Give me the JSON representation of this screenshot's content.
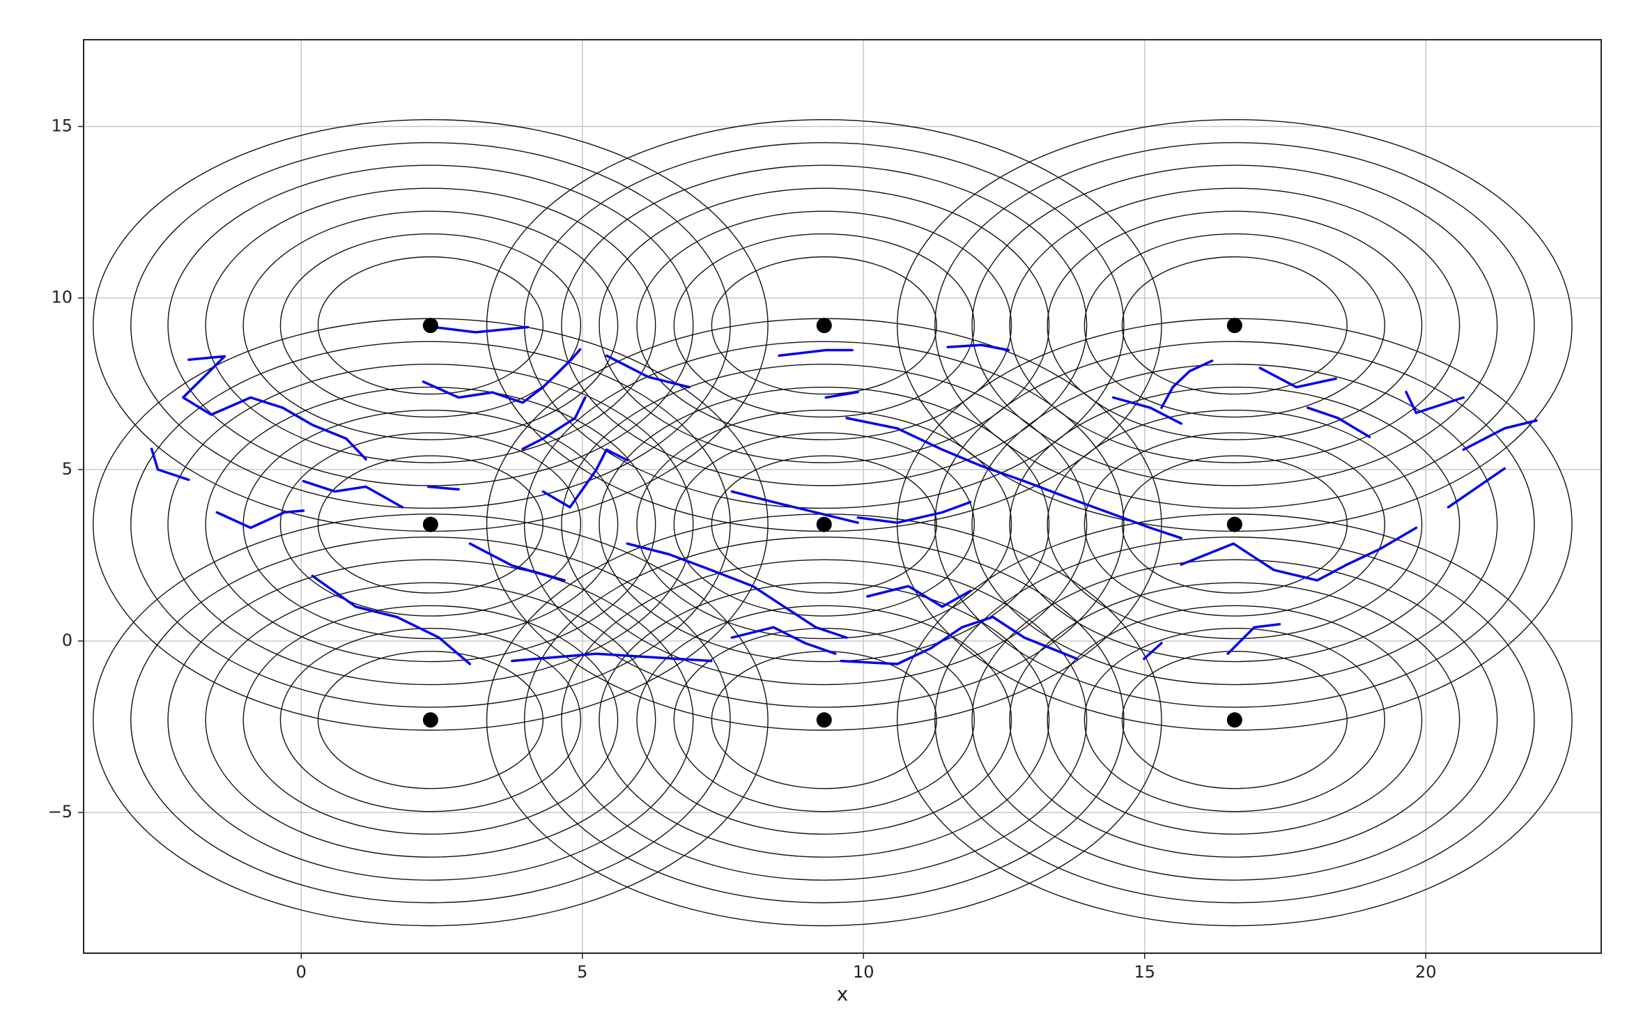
{
  "chart_data": {
    "type": "scatter",
    "x_label": "x",
    "xlim": [
      -3.87,
      23.12
    ],
    "ylim": [
      -9.1,
      17.53
    ],
    "xticks": [
      0,
      5,
      10,
      15,
      20
    ],
    "yticks": [
      {
        "value": -5,
        "label": "−5"
      },
      0,
      5,
      10,
      15
    ],
    "grid": true,
    "radii": [
      2,
      2.67,
      3.33,
      4,
      4.67,
      5.33,
      6
    ],
    "ring_color": "#111111",
    "series": [
      {
        "color": "#000000",
        "marker": "dot",
        "x": [
          2.3,
          9.3,
          16.6,
          2.3,
          9.3,
          16.6,
          2.3,
          9.3,
          16.6
        ],
        "y": [
          9.2,
          9.2,
          9.2,
          3.4,
          3.4,
          3.4,
          -2.3,
          -2.3,
          -2.3
        ]
      },
      {
        "color": "#0000ee",
        "marker": "line",
        "x": [
          -2.0,
          -1.36,
          -2.1,
          -1.6,
          -0.9,
          -0.33,
          0.2,
          0.8,
          1.15,
          null,
          -2.66,
          -2.55,
          -2.0,
          null,
          -1.5,
          -0.9,
          -0.3,
          0.04,
          null,
          0.04,
          0.6,
          1.15,
          1.8,
          null,
          0.2,
          0.97,
          1.7,
          2.45,
          3.0,
          null,
          2.27,
          3.1,
          4.03,
          null,
          2.17,
          2.8,
          3.4,
          3.94,
          4.3,
          4.8,
          4.96,
          null,
          3.94,
          4.3,
          4.87,
          5.05,
          null,
          4.3,
          4.78,
          5.24,
          5.43,
          5.8,
          null,
          3.0,
          3.75,
          4.68,
          null,
          3.75,
          5.24,
          7.29,
          null,
          5.43,
          6.17,
          6.9,
          null,
          5.8,
          6.54,
          7.29,
          8.03,
          8.59,
          9.15,
          9.7,
          null,
          7.66,
          8.4,
          9.15,
          9.9,
          null,
          8.5,
          9.33,
          9.8,
          null,
          9.33,
          9.9,
          null,
          9.7,
          10.6,
          11.4,
          12.1,
          12.86,
          13.6,
          14.35,
          15.1,
          15.65,
          null,
          9.9,
          10.6,
          11.4,
          11.9,
          null,
          7.66,
          8.4,
          8.96,
          9.5,
          null,
          9.6,
          10.6,
          11.2,
          11.75,
          12.3,
          12.86,
          13.8,
          null,
          10.07,
          10.8,
          11.4,
          11.9,
          null,
          11.5,
          12.1,
          12.58,
          null,
          14.44,
          15.1,
          15.65,
          null,
          15.3,
          15.5,
          15.8,
          16.2,
          null,
          17.05,
          17.7,
          18.4,
          null,
          17.9,
          18.44,
          19.0,
          null,
          19.65,
          19.83,
          20.67,
          null,
          15.65,
          16.58,
          17.3,
          18.07,
          18.6,
          19.18,
          19.83,
          null,
          20.4,
          20.86,
          21.4,
          null,
          20.67,
          21.4,
          21.97,
          null,
          16.48,
          16.95,
          17.4,
          null,
          14.99,
          15.3,
          null,
          2.8,
          2.26
        ],
        "y": [
          8.2,
          8.3,
          7.1,
          6.6,
          7.1,
          6.8,
          6.3,
          5.9,
          5.3,
          null,
          5.6,
          5.0,
          4.7,
          null,
          3.75,
          3.3,
          3.75,
          3.8,
          null,
          4.66,
          4.36,
          4.5,
          3.9,
          null,
          1.9,
          1.0,
          0.7,
          0.1,
          -0.67,
          null,
          9.17,
          9.0,
          9.15,
          null,
          7.56,
          7.1,
          7.25,
          6.95,
          7.4,
          8.2,
          8.5,
          null,
          5.6,
          5.9,
          6.5,
          7.1,
          null,
          4.36,
          3.9,
          4.97,
          5.58,
          5.27,
          null,
          2.84,
          2.2,
          1.77,
          null,
          -0.58,
          -0.37,
          -0.58,
          null,
          8.32,
          7.7,
          7.4,
          null,
          2.84,
          2.53,
          2.07,
          1.6,
          1.0,
          0.4,
          0.1,
          null,
          4.36,
          4.05,
          3.75,
          3.45,
          null,
          8.32,
          8.48,
          8.48,
          null,
          7.1,
          7.26,
          null,
          6.5,
          6.2,
          5.58,
          5.1,
          4.66,
          4.2,
          3.75,
          3.3,
          3.0,
          null,
          3.6,
          3.45,
          3.75,
          4.05,
          null,
          0.1,
          0.4,
          -0.06,
          -0.37,
          null,
          -0.58,
          -0.67,
          -0.21,
          0.4,
          0.7,
          0.1,
          -0.52,
          null,
          1.3,
          1.6,
          1.0,
          1.46,
          null,
          8.57,
          8.63,
          8.48,
          null,
          7.1,
          6.8,
          6.34,
          null,
          6.8,
          7.4,
          7.87,
          8.17,
          null,
          7.96,
          7.4,
          7.65,
          null,
          6.8,
          6.5,
          5.95,
          null,
          7.26,
          6.65,
          7.1,
          null,
          2.23,
          2.84,
          2.07,
          1.77,
          2.23,
          2.68,
          3.3,
          null,
          3.9,
          4.42,
          5.03,
          null,
          5.58,
          6.2,
          6.43,
          null,
          -0.37,
          0.4,
          0.49,
          null,
          -0.52,
          -0.06,
          null,
          4.42,
          4.5
        ]
      }
    ]
  }
}
